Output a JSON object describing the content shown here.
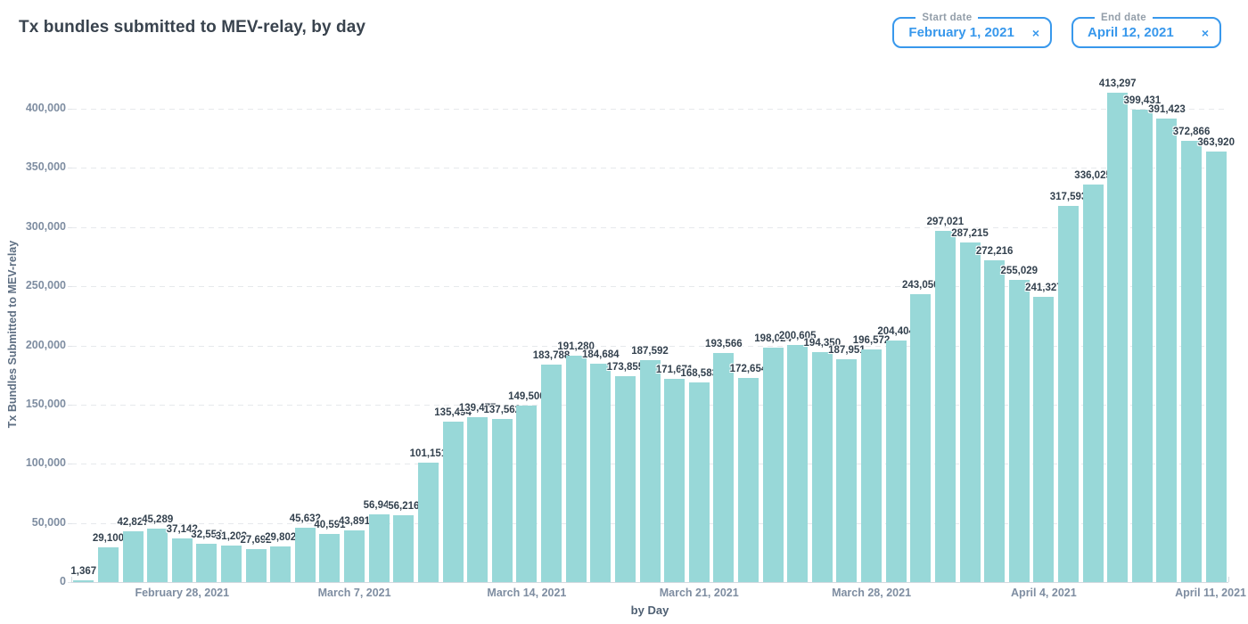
{
  "header": {
    "title": "Tx bundles submitted to MEV-relay, by day",
    "date_pickers": [
      {
        "label": "Start date",
        "value": "February 1, 2021",
        "clear_icon": "×"
      },
      {
        "label": "End date",
        "value": "April 12, 2021",
        "clear_icon": "×"
      }
    ],
    "accent_color": "#3898ec"
  },
  "chart_data": {
    "type": "bar",
    "title": "Tx bundles submitted to MEV-relay, by day",
    "xlabel": "by Day",
    "ylabel": "Tx Bundles Submitted to MEV-relay",
    "ylim": [
      0,
      420000
    ],
    "bar_color": "#98d8d8",
    "grid": "horizontal dashed",
    "legend": "none",
    "y_ticks": [
      {
        "value": 0,
        "label": "0"
      },
      {
        "value": 50000,
        "label": "50,000"
      },
      {
        "value": 100000,
        "label": "100,000"
      },
      {
        "value": 150000,
        "label": "150,000"
      },
      {
        "value": 200000,
        "label": "200,000"
      },
      {
        "value": 250000,
        "label": "250,000"
      },
      {
        "value": 300000,
        "label": "300,000"
      },
      {
        "value": 350000,
        "label": "350,000"
      },
      {
        "value": 400000,
        "label": "400,000"
      }
    ],
    "values": [
      1367,
      29100,
      42827,
      45289,
      37142,
      32554,
      31203,
      27692,
      29802,
      45632,
      40591,
      43891,
      56943,
      56216,
      101151,
      135494,
      139477,
      137562,
      149500,
      183788,
      191280,
      184684,
      173855,
      187592,
      171671,
      168583,
      193566,
      172654,
      198024,
      200605,
      194350,
      187951,
      196572,
      204404,
      243050,
      297021,
      287215,
      272216,
      255029,
      241327,
      317593,
      336025,
      413297,
      399431,
      391423,
      372866,
      363920
    ],
    "x_ticks": [
      {
        "index": 4,
        "label": "February 28, 2021"
      },
      {
        "index": 11,
        "label": "March 7, 2021"
      },
      {
        "index": 18,
        "label": "March 14, 2021"
      },
      {
        "index": 25,
        "label": "March 21, 2021"
      },
      {
        "index": 32,
        "label": "March 28, 2021"
      },
      {
        "index": 39,
        "label": "April 4, 2021"
      },
      {
        "index": 46,
        "label": "April 11, 2021"
      }
    ]
  }
}
